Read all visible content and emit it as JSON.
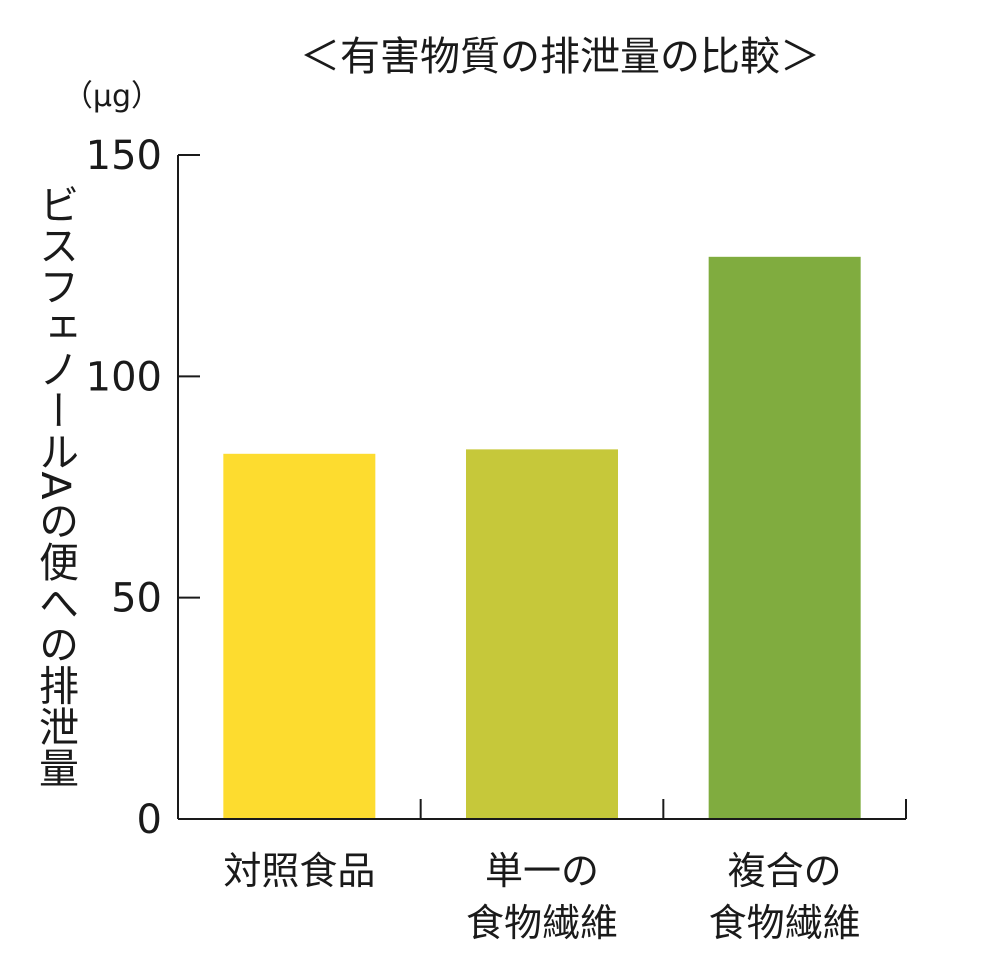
{
  "chart_data": {
    "type": "bar",
    "title": "＜有害物質の排泄量の比較＞",
    "unit": "（μg）",
    "ylabel": "ビスフェノールAの便への排泄量",
    "ylim": [
      0,
      150
    ],
    "yticks": [
      0,
      50,
      100,
      150
    ],
    "categories": [
      [
        "対照食品"
      ],
      [
        "単一の",
        "食物繊維"
      ],
      [
        "複合の",
        "食物繊維"
      ]
    ],
    "values": [
      82.5,
      83.5,
      127
    ],
    "colors": [
      "#FDDC2F",
      "#C6C83A",
      "#80AC3F"
    ],
    "grid": false,
    "legend": "none"
  }
}
